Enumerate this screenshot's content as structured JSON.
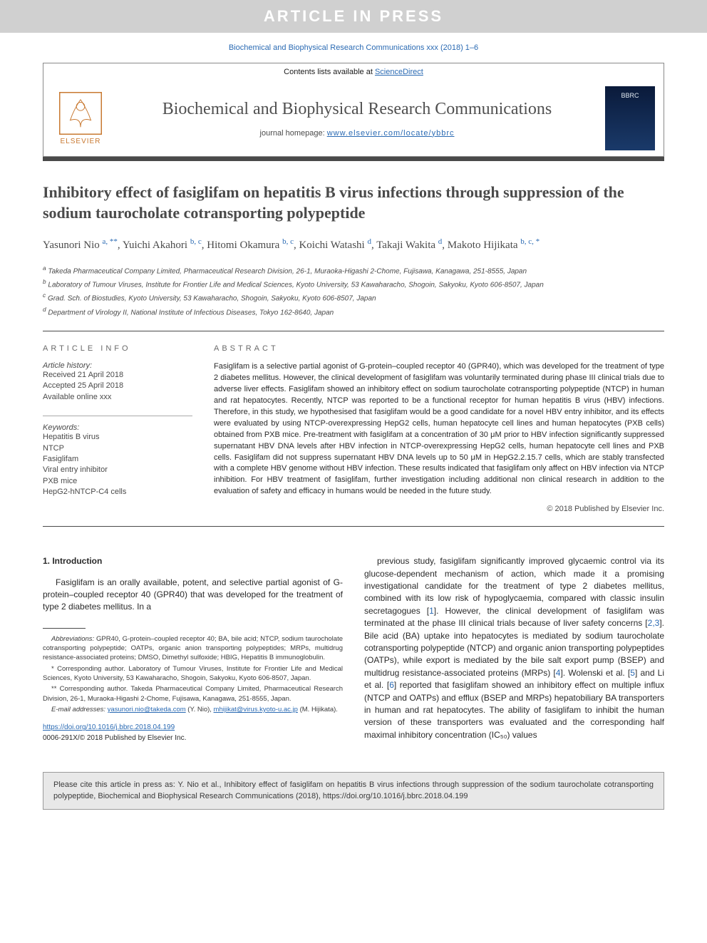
{
  "banner": "ARTICLE IN PRESS",
  "journalRef": "Biochemical and Biophysical Research Communications xxx (2018) 1–6",
  "headerTop": "Contents lists available at ",
  "headerTopLink": "ScienceDirect",
  "journalTitle": "Biochemical and Biophysical Research Communications",
  "homepageLabel": "journal homepage: ",
  "homepageUrl": "www.elsevier.com/locate/ybbrc",
  "elsevierLabel": "ELSEVIER",
  "coverText": "BBRC",
  "title": "Inhibitory effect of fasiglifam on hepatitis B virus infections through suppression of the sodium taurocholate cotransporting polypeptide",
  "authors": [
    {
      "name": "Yasunori Nio",
      "aff": "a, **"
    },
    {
      "name": "Yuichi Akahori",
      "aff": "b, c"
    },
    {
      "name": "Hitomi Okamura",
      "aff": "b, c"
    },
    {
      "name": "Koichi Watashi",
      "aff": "d"
    },
    {
      "name": "Takaji Wakita",
      "aff": "d"
    },
    {
      "name": "Makoto Hijikata",
      "aff": "b, c, *"
    }
  ],
  "affiliations": [
    {
      "sup": "a",
      "text": "Takeda Pharmaceutical Company Limited, Pharmaceutical Research Division, 26-1, Muraoka-Higashi 2-Chome, Fujisawa, Kanagawa, 251-8555, Japan"
    },
    {
      "sup": "b",
      "text": "Laboratory of Tumour Viruses, Institute for Frontier Life and Medical Sciences, Kyoto University, 53 Kawaharacho, Shogoin, Sakyoku, Kyoto 606-8507, Japan"
    },
    {
      "sup": "c",
      "text": "Grad. Sch. of Biostudies, Kyoto University, 53 Kawaharacho, Shogoin, Sakyoku, Kyoto 606-8507, Japan"
    },
    {
      "sup": "d",
      "text": "Department of Virology II, National Institute of Infectious Diseases, Tokyo 162-8640, Japan"
    }
  ],
  "infoHeading": "ARTICLE INFO",
  "abstractHeading": "ABSTRACT",
  "history": {
    "label": "Article history:",
    "received": "Received 21 April 2018",
    "accepted": "Accepted 25 April 2018",
    "online": "Available online xxx"
  },
  "keywordsLabel": "Keywords:",
  "keywords": [
    "Hepatitis B virus",
    "NTCP",
    "Fasiglifam",
    "Viral entry inhibitor",
    "PXB mice",
    "HepG2-hNTCP-C4 cells"
  ],
  "abstract": "Fasiglifam is a selective partial agonist of G-protein–coupled receptor 40 (GPR40), which was developed for the treatment of type 2 diabetes mellitus. However, the clinical development of fasiglifam was voluntarily terminated during phase III clinical trials due to adverse liver effects. Fasiglifam showed an inhibitory effect on sodium taurocholate cotransporting polypeptide (NTCP) in human and rat hepatocytes. Recently, NTCP was reported to be a functional receptor for human hepatitis B virus (HBV) infections. Therefore, in this study, we hypothesised that fasiglifam would be a good candidate for a novel HBV entry inhibitor, and its effects were evaluated by using NTCP-overexpressing HepG2 cells, human hepatocyte cell lines and human hepatocytes (PXB cells) obtained from PXB mice. Pre-treatment with fasiglifam at a concentration of 30 μM prior to HBV infection significantly suppressed supernatant HBV DNA levels after HBV infection in NTCP-overexpressing HepG2 cells, human hepatocyte cell lines and PXB cells. Fasiglifam did not suppress supernatant HBV DNA levels up to 50 μM in HepG2.2.15.7 cells, which are stably transfected with a complete HBV genome without HBV infection. These results indicated that fasiglifam only affect on HBV infection via NTCP inhibition. For HBV treatment of fasiglifam, further investigation including additional non clinical research in addition to the evaluation of safety and efficacy in humans would be needed in the future study.",
  "copyright": "© 2018 Published by Elsevier Inc.",
  "introHeading": "1. Introduction",
  "introCol1": "Fasiglifam is an orally available, potent, and selective partial agonist of G-protein–coupled receptor 40 (GPR40) that was developed for the treatment of type 2 diabetes mellitus. In a",
  "introCol2a": "previous study, fasiglifam significantly improved glycaemic control via its glucose-dependent mechanism of action, which made it a promising investigational candidate for the treatment of type 2 diabetes mellitus, combined with its low risk of hypoglycaemia, compared with classic insulin secretagogues [",
  "introCol2b": "]. However, the clinical development of fasiglifam was terminated at the phase III clinical trials because of liver safety concerns [",
  "introCol2c": "]. Bile acid (BA) uptake into hepatocytes is mediated by sodium taurocholate cotransporting polypeptide (NTCP) and organic anion transporting polypeptides (OATPs), while export is mediated by the bile salt export pump (BSEP) and multidrug resistance-associated proteins (MRPs) [",
  "introCol2d": "]. Wolenski et al. [",
  "introCol2e": "] and Li et al. [",
  "introCol2f": "] reported that fasiglifam showed an inhibitory effect on multiple influx (NTCP and OATPs) and efflux (BSEP and MRPs) hepatobiliary BA transporters in human and rat hepatocytes. The ability of fasiglifam to inhibit the human version of these transporters was evaluated and the corresponding half maximal inhibitory concentration (IC₅₀) values",
  "refs": {
    "r1": "1",
    "r23": "2,3",
    "r4": "4",
    "r5": "5",
    "r6": "6"
  },
  "footnotes": {
    "abbrevLabel": "Abbreviations:",
    "abbrev": " GPR40, G-protein–coupled receptor 40; BA, bile acid; NTCP, sodium taurocholate cotransporting polypeptide; OATPs, organic anion transporting polypeptides; MRPs, multidrug resistance-associated proteins; DMSO, Dimethyl sulfoxide; HBIG, Hepatitis B immunoglobulin.",
    "corr1": "* Corresponding author. Laboratory of Tumour Viruses, Institute for Frontier Life and Medical Sciences, Kyoto University, 53 Kawaharacho, Shogoin, Sakyoku, Kyoto 606-8507, Japan.",
    "corr2": "** Corresponding author. Takeda Pharmaceutical Company Limited, Pharmaceutical Research Division, 26-1, Muraoka-Higashi 2-Chome, Fujisawa, Kanagawa, 251-8555, Japan.",
    "emailLabel": "E-mail addresses: ",
    "email1": "yasunori.nio@takeda.com",
    "emailName1": " (Y. Nio), ",
    "email2": "mhijikat@virus.kyoto-u.ac.jp",
    "emailName2": " (M. Hijikata)."
  },
  "doi": "https://doi.org/10.1016/j.bbrc.2018.04.199",
  "issn": "0006-291X/© 2018 Published by Elsevier Inc.",
  "citation": "Please cite this article in press as: Y. Nio et al., Inhibitory effect of fasiglifam on hepatitis B virus infections through suppression of the sodium taurocholate cotransporting polypeptide, Biochemical and Biophysical Research Communications (2018), https://doi.org/10.1016/j.bbrc.2018.04.199",
  "colors": {
    "bannerBg": "#d0d0d0",
    "link": "#2a6ab3",
    "divider": "#4a4a4a",
    "elsevier": "#c87830"
  }
}
